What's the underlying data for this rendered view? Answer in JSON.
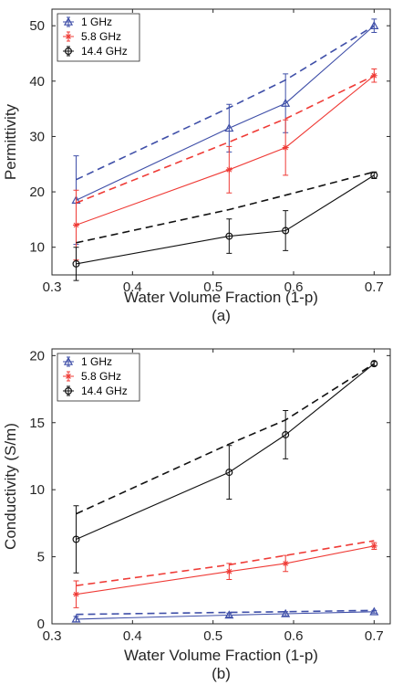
{
  "chart_data": [
    {
      "type": "line",
      "caption": "(a)",
      "xlabel": "Water Volume Fraction (1-p)",
      "ylabel": "Permittivity",
      "xlim": [
        0.3,
        0.72
      ],
      "ylim": [
        5,
        53
      ],
      "xticks": [
        "0.3",
        "0.4",
        "0.5",
        "0.6",
        "0.7"
      ],
      "yticks": [
        "10",
        "20",
        "30",
        "40",
        "50"
      ],
      "legend_position": "top-left",
      "x": [
        0.33,
        0.52,
        0.59,
        0.7
      ],
      "series": [
        {
          "name": "1 GHz",
          "color": "#3f4fa8",
          "marker": "triangle",
          "values": [
            18.5,
            31.5,
            36,
            50
          ],
          "errors": [
            8,
            4.3,
            5.3,
            1.2
          ],
          "model": [
            22.2,
            35.2,
            40.2,
            50
          ]
        },
        {
          "name": "5.8 GHz",
          "color": "#ef3b36",
          "marker": "star",
          "values": [
            14,
            24,
            28,
            41
          ],
          "errors": [
            6.3,
            4.2,
            5,
            1.2
          ],
          "model": [
            18,
            29,
            33.2,
            41
          ]
        },
        {
          "name": "14.4 GHz",
          "color": "#111111",
          "marker": "circle",
          "values": [
            7,
            12,
            13,
            23
          ],
          "errors": [
            3,
            3.1,
            3.6,
            0.6
          ],
          "model": [
            10.8,
            16.8,
            19.4,
            23.6
          ]
        }
      ]
    },
    {
      "type": "line",
      "caption": "(b)",
      "xlabel": "Water Volume Fraction (1-p)",
      "ylabel": "Conductivity (S/m)",
      "xlim": [
        0.3,
        0.72
      ],
      "ylim": [
        0,
        20.5
      ],
      "xticks": [
        "0.3",
        "0.4",
        "0.5",
        "0.6",
        "0.7"
      ],
      "yticks": [
        "0",
        "5",
        "10",
        "15",
        "20"
      ],
      "legend_position": "top-left",
      "x": [
        0.33,
        0.52,
        0.59,
        0.7
      ],
      "series": [
        {
          "name": "1 GHz",
          "color": "#3f4fa8",
          "marker": "triangle",
          "values": [
            0.35,
            0.65,
            0.75,
            0.9
          ],
          "errors": [
            0.2,
            0.15,
            0.15,
            0.1
          ],
          "model": [
            0.7,
            0.85,
            0.9,
            1.0
          ]
        },
        {
          "name": "5.8 GHz",
          "color": "#ef3b36",
          "marker": "star",
          "values": [
            2.2,
            3.9,
            4.5,
            5.8
          ],
          "errors": [
            1,
            0.6,
            0.6,
            0.25
          ],
          "model": [
            2.85,
            4.4,
            5.1,
            6.2
          ]
        },
        {
          "name": "14.4 GHz",
          "color": "#111111",
          "marker": "circle",
          "values": [
            6.3,
            11.3,
            14.1,
            19.4
          ],
          "errors": [
            2.5,
            2,
            1.8,
            0.15
          ],
          "model": [
            8.2,
            13.4,
            15.2,
            19.4
          ]
        }
      ]
    }
  ]
}
